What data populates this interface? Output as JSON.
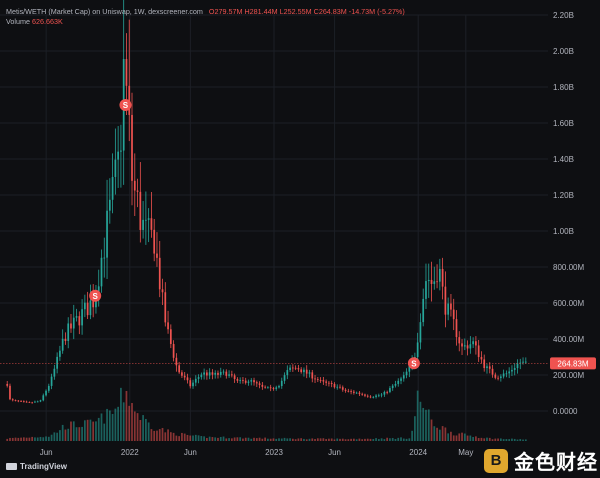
{
  "chart_data": {
    "type": "candlestick",
    "symbol": "Metis/WETH (Market Cap) on Uniswap, 1W, dexscreener.com",
    "ohlc": {
      "open": "O279.57M",
      "high": "H281.44M",
      "low": "L252.55M",
      "close": "C264.83M",
      "change": "-14.73M (-5.27%)"
    },
    "volume_label": "Volume",
    "volume_value": "626.663K",
    "y_ticks": [
      "2.20B",
      "2.00B",
      "1.80B",
      "1.60B",
      "1.40B",
      "1.20B",
      "1.00B",
      "800.00M",
      "600.00M",
      "400.00M",
      "200.00M",
      "0.0000"
    ],
    "y_tick_values": [
      2200,
      2000,
      1800,
      1600,
      1400,
      1200,
      1000,
      800,
      600,
      400,
      200,
      0
    ],
    "x_ticks": [
      {
        "label": "Jun",
        "t": 2021.42
      },
      {
        "label": "2022",
        "t": 2022.0
      },
      {
        "label": "Jun",
        "t": 2022.42
      },
      {
        "label": "2023",
        "t": 2023.0
      },
      {
        "label": "Jun",
        "t": 2023.42
      },
      {
        "label": "2024",
        "t": 2024.0
      },
      {
        "label": "May",
        "t": 2024.33
      }
    ],
    "x_range": [
      2021.1,
      2024.9
    ],
    "y_range_market_cap_M": [
      -120,
      2200
    ],
    "current_price_label": "264.83M",
    "current_price_value": 264.83,
    "series_path": [
      [
        2021.15,
        150
      ],
      [
        2021.17,
        60
      ],
      [
        2021.3,
        45
      ],
      [
        2021.38,
        55
      ],
      [
        2021.45,
        160
      ],
      [
        2021.55,
        420
      ],
      [
        2021.65,
        520
      ],
      [
        2021.75,
        620
      ],
      [
        2021.85,
        1050
      ],
      [
        2021.92,
        1350
      ],
      [
        2021.96,
        1900
      ],
      [
        2022.02,
        1250
      ],
      [
        2022.1,
        1000
      ],
      [
        2022.17,
        950
      ],
      [
        2022.21,
        700
      ],
      [
        2022.25,
        480
      ],
      [
        2022.33,
        230
      ],
      [
        2022.42,
        140
      ],
      [
        2022.5,
        210
      ],
      [
        2022.58,
        200
      ],
      [
        2022.67,
        210
      ],
      [
        2022.75,
        160
      ],
      [
        2022.83,
        170
      ],
      [
        2022.92,
        130
      ],
      [
        2022.98,
        120
      ],
      [
        2023.04,
        150
      ],
      [
        2023.1,
        230
      ],
      [
        2023.16,
        240
      ],
      [
        2023.25,
        200
      ],
      [
        2023.33,
        160
      ],
      [
        2023.42,
        140
      ],
      [
        2023.5,
        110
      ],
      [
        2023.58,
        100
      ],
      [
        2023.67,
        80
      ],
      [
        2023.75,
        90
      ],
      [
        2023.83,
        140
      ],
      [
        2023.9,
        190
      ],
      [
        2023.97,
        280
      ],
      [
        2024.02,
        600
      ],
      [
        2024.06,
        760
      ],
      [
        2024.1,
        700
      ],
      [
        2024.14,
        820
      ],
      [
        2024.18,
        600
      ],
      [
        2024.24,
        500
      ],
      [
        2024.3,
        350
      ],
      [
        2024.38,
        380
      ],
      [
        2024.46,
        250
      ],
      [
        2024.54,
        190
      ],
      [
        2024.62,
        210
      ],
      [
        2024.7,
        270
      ],
      [
        2024.75,
        265
      ]
    ],
    "volume_path": [
      [
        2021.15,
        0.05
      ],
      [
        2021.45,
        0.1
      ],
      [
        2021.55,
        0.3
      ],
      [
        2021.75,
        0.35
      ],
      [
        2021.9,
        0.6
      ],
      [
        2021.97,
        1.0
      ],
      [
        2022.05,
        0.55
      ],
      [
        2022.15,
        0.3
      ],
      [
        2022.3,
        0.15
      ],
      [
        2022.5,
        0.08
      ],
      [
        2023.0,
        0.05
      ],
      [
        2023.5,
        0.04
      ],
      [
        2023.95,
        0.06
      ],
      [
        2024.0,
        0.9
      ],
      [
        2024.1,
        0.35
      ],
      [
        2024.25,
        0.15
      ],
      [
        2024.5,
        0.05
      ],
      [
        2024.75,
        0.03
      ]
    ],
    "markers": [
      {
        "label": "S",
        "t": 2021.76,
        "v": 640
      },
      {
        "label": "S",
        "t": 2021.97,
        "v": 1700
      },
      {
        "label": "S",
        "t": 2023.97,
        "v": 265
      }
    ],
    "colors": {
      "up": "#26a69a",
      "down": "#ef5350",
      "background": "#0e0f12",
      "grid": "#1c1f26",
      "axis_text": "#b2b5be",
      "marker": "#ef5350",
      "price_line": "#ef5350"
    },
    "grid": true
  },
  "branding": {
    "tradingview": "TradingView",
    "jinse_icon_name": "jinse-gold-logo-icon",
    "jinse_mark": "B",
    "jinse_text": "金色财经"
  }
}
